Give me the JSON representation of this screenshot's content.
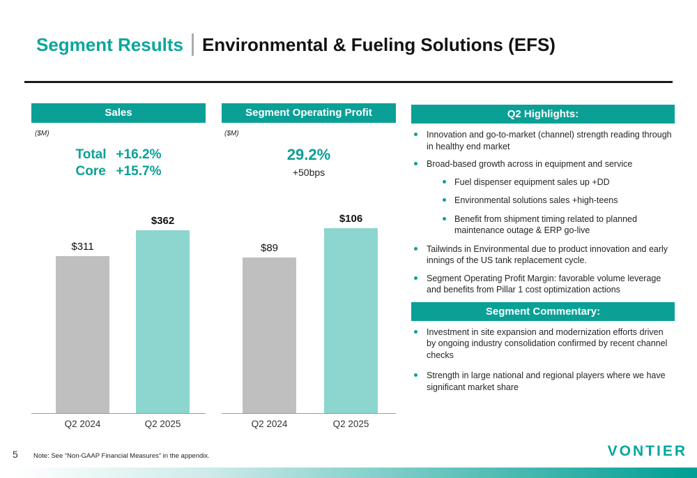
{
  "title": {
    "left": "Segment Results",
    "right": "Environmental & Fueling Solutions (EFS)"
  },
  "colors": {
    "brand_teal": "#0AA096",
    "light_teal_bar": "#8DD5CF",
    "gray_bar": "#BFBFBF",
    "logo_teal": "#00A79E"
  },
  "chart_data": [
    {
      "type": "bar",
      "panel_header": "Sales",
      "unit": "($M)",
      "categories": [
        "Q2 2024",
        "Q2 2025"
      ],
      "values": [
        311,
        362
      ],
      "value_labels": [
        "$311",
        "$362"
      ],
      "bar_colors": [
        "#BFBFBF",
        "#8DD5CF"
      ],
      "growth": {
        "total_label": "Total",
        "total_value": "+16.2%",
        "core_label": "Core",
        "core_value": "+15.7%"
      },
      "ylim": [
        0,
        400
      ],
      "grid": false,
      "legend": "none"
    },
    {
      "type": "bar",
      "panel_header": "Segment Operating Profit",
      "unit": "($M)",
      "categories": [
        "Q2 2024",
        "Q2 2025"
      ],
      "values": [
        89,
        106
      ],
      "value_labels": [
        "$89",
        "$106"
      ],
      "bar_colors": [
        "#BFBFBF",
        "#8DD5CF"
      ],
      "margin": {
        "value": "29.2%",
        "delta": "+50bps"
      },
      "ylim": [
        0,
        120
      ],
      "grid": false,
      "legend": "none"
    }
  ],
  "right_panel": {
    "highlights": {
      "header": "Q2 Highlights:",
      "bullets": [
        {
          "level": 1,
          "text": "Innovation and go-to-market (channel) strength reading through in healthy end market"
        },
        {
          "level": 1,
          "text": "Broad-based growth across in equipment and service"
        },
        {
          "level": 2,
          "text": "Fuel dispenser equipment sales up +DD"
        },
        {
          "level": 2,
          "text": "Environmental solutions sales +high-teens"
        },
        {
          "level": 2,
          "text": "Benefit from shipment timing related to planned maintenance outage & ERP go-live"
        },
        {
          "level": 1,
          "text": "Tailwinds in Environmental due to product innovation and early innings of the US tank replacement cycle."
        },
        {
          "level": 1,
          "text": "Segment Operating Profit Margin: favorable volume leverage and benefits from Pillar 1 cost optimization actions"
        }
      ]
    },
    "commentary": {
      "header": "Segment Commentary:",
      "bullets": [
        {
          "level": 1,
          "text": "Investment in site expansion and modernization efforts driven by ongoing industry consolidation confirmed by recent channel checks"
        },
        {
          "level": 1,
          "text": "Strength in large national and regional players where we have significant market share"
        }
      ]
    }
  },
  "footer": {
    "page_number": "5",
    "note": "Note: See “Non-GAAP Financial Measures” in the appendix.",
    "logo": "VONTIER"
  }
}
